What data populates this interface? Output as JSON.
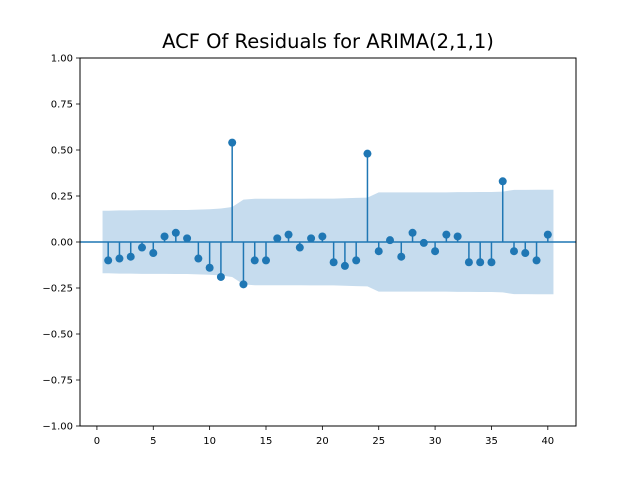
{
  "chart_data": {
    "type": "acf_stem",
    "title": "ACF Of Residuals for ARIMA(2,1,1)",
    "xlabel": "",
    "ylabel": "",
    "xlim": [
      -1.5,
      42.5
    ],
    "ylim": [
      -1.0,
      1.0
    ],
    "xticks": [
      0,
      5,
      10,
      15,
      20,
      25,
      30,
      35,
      40
    ],
    "xtick_labels": [
      "0",
      "5",
      "10",
      "15",
      "20",
      "25",
      "30",
      "35",
      "40"
    ],
    "yticks": [
      1.0,
      0.75,
      0.5,
      0.25,
      0.0,
      -0.25,
      -0.5,
      -0.75,
      -1.0
    ],
    "ytick_labels": [
      "1.00",
      "0.75",
      "0.50",
      "0.25",
      "0.00",
      "−0.25",
      "−0.50",
      "−0.75",
      "−1.00"
    ],
    "lags": [
      1,
      2,
      3,
      4,
      5,
      6,
      7,
      8,
      9,
      10,
      11,
      12,
      13,
      14,
      15,
      16,
      17,
      18,
      19,
      20,
      21,
      22,
      23,
      24,
      25,
      26,
      27,
      28,
      29,
      30,
      31,
      32,
      33,
      34,
      35,
      36,
      37,
      38,
      39,
      40
    ],
    "values": [
      -0.1,
      -0.09,
      -0.08,
      -0.03,
      -0.06,
      0.03,
      0.05,
      0.02,
      -0.09,
      -0.14,
      -0.19,
      0.54,
      -0.23,
      -0.1,
      -0.1,
      0.02,
      0.04,
      -0.03,
      0.02,
      0.03,
      -0.11,
      -0.13,
      -0.1,
      0.48,
      -0.05,
      0.01,
      -0.08,
      0.05,
      -0.005,
      -0.05,
      0.04,
      0.03,
      -0.11,
      -0.11,
      -0.11,
      0.33,
      -0.05,
      -0.06,
      -0.1,
      0.04
    ],
    "confidence_band": {
      "x": [
        0.5,
        1,
        2,
        3,
        4,
        5,
        6,
        7,
        8,
        9,
        10,
        11,
        12,
        13,
        14,
        15,
        16,
        17,
        18,
        19,
        20,
        21,
        22,
        23,
        24,
        25,
        26,
        27,
        28,
        29,
        30,
        31,
        32,
        33,
        34,
        35,
        36,
        37,
        38,
        39,
        40,
        40.5
      ],
      "upper": [
        0.17,
        0.17,
        0.172,
        0.172,
        0.173,
        0.173,
        0.173,
        0.174,
        0.174,
        0.176,
        0.178,
        0.182,
        0.19,
        0.23,
        0.235,
        0.235,
        0.235,
        0.235,
        0.235,
        0.236,
        0.236,
        0.236,
        0.238,
        0.24,
        0.241,
        0.27,
        0.27,
        0.27,
        0.27,
        0.27,
        0.27,
        0.27,
        0.271,
        0.271,
        0.272,
        0.272,
        0.274,
        0.283,
        0.283,
        0.284,
        0.284,
        0.284
      ],
      "lower": [
        -0.17,
        -0.17,
        -0.172,
        -0.172,
        -0.173,
        -0.173,
        -0.173,
        -0.174,
        -0.174,
        -0.176,
        -0.178,
        -0.182,
        -0.19,
        -0.23,
        -0.235,
        -0.235,
        -0.235,
        -0.235,
        -0.235,
        -0.236,
        -0.236,
        -0.236,
        -0.238,
        -0.24,
        -0.241,
        -0.27,
        -0.27,
        -0.27,
        -0.27,
        -0.27,
        -0.27,
        -0.27,
        -0.271,
        -0.271,
        -0.272,
        -0.272,
        -0.274,
        -0.283,
        -0.283,
        -0.284,
        -0.284,
        -0.284
      ]
    },
    "grid": false,
    "zero_line": true,
    "colors": {
      "stem": "#1f77b4",
      "band": "#c6dcee",
      "axes": "#000000"
    }
  }
}
